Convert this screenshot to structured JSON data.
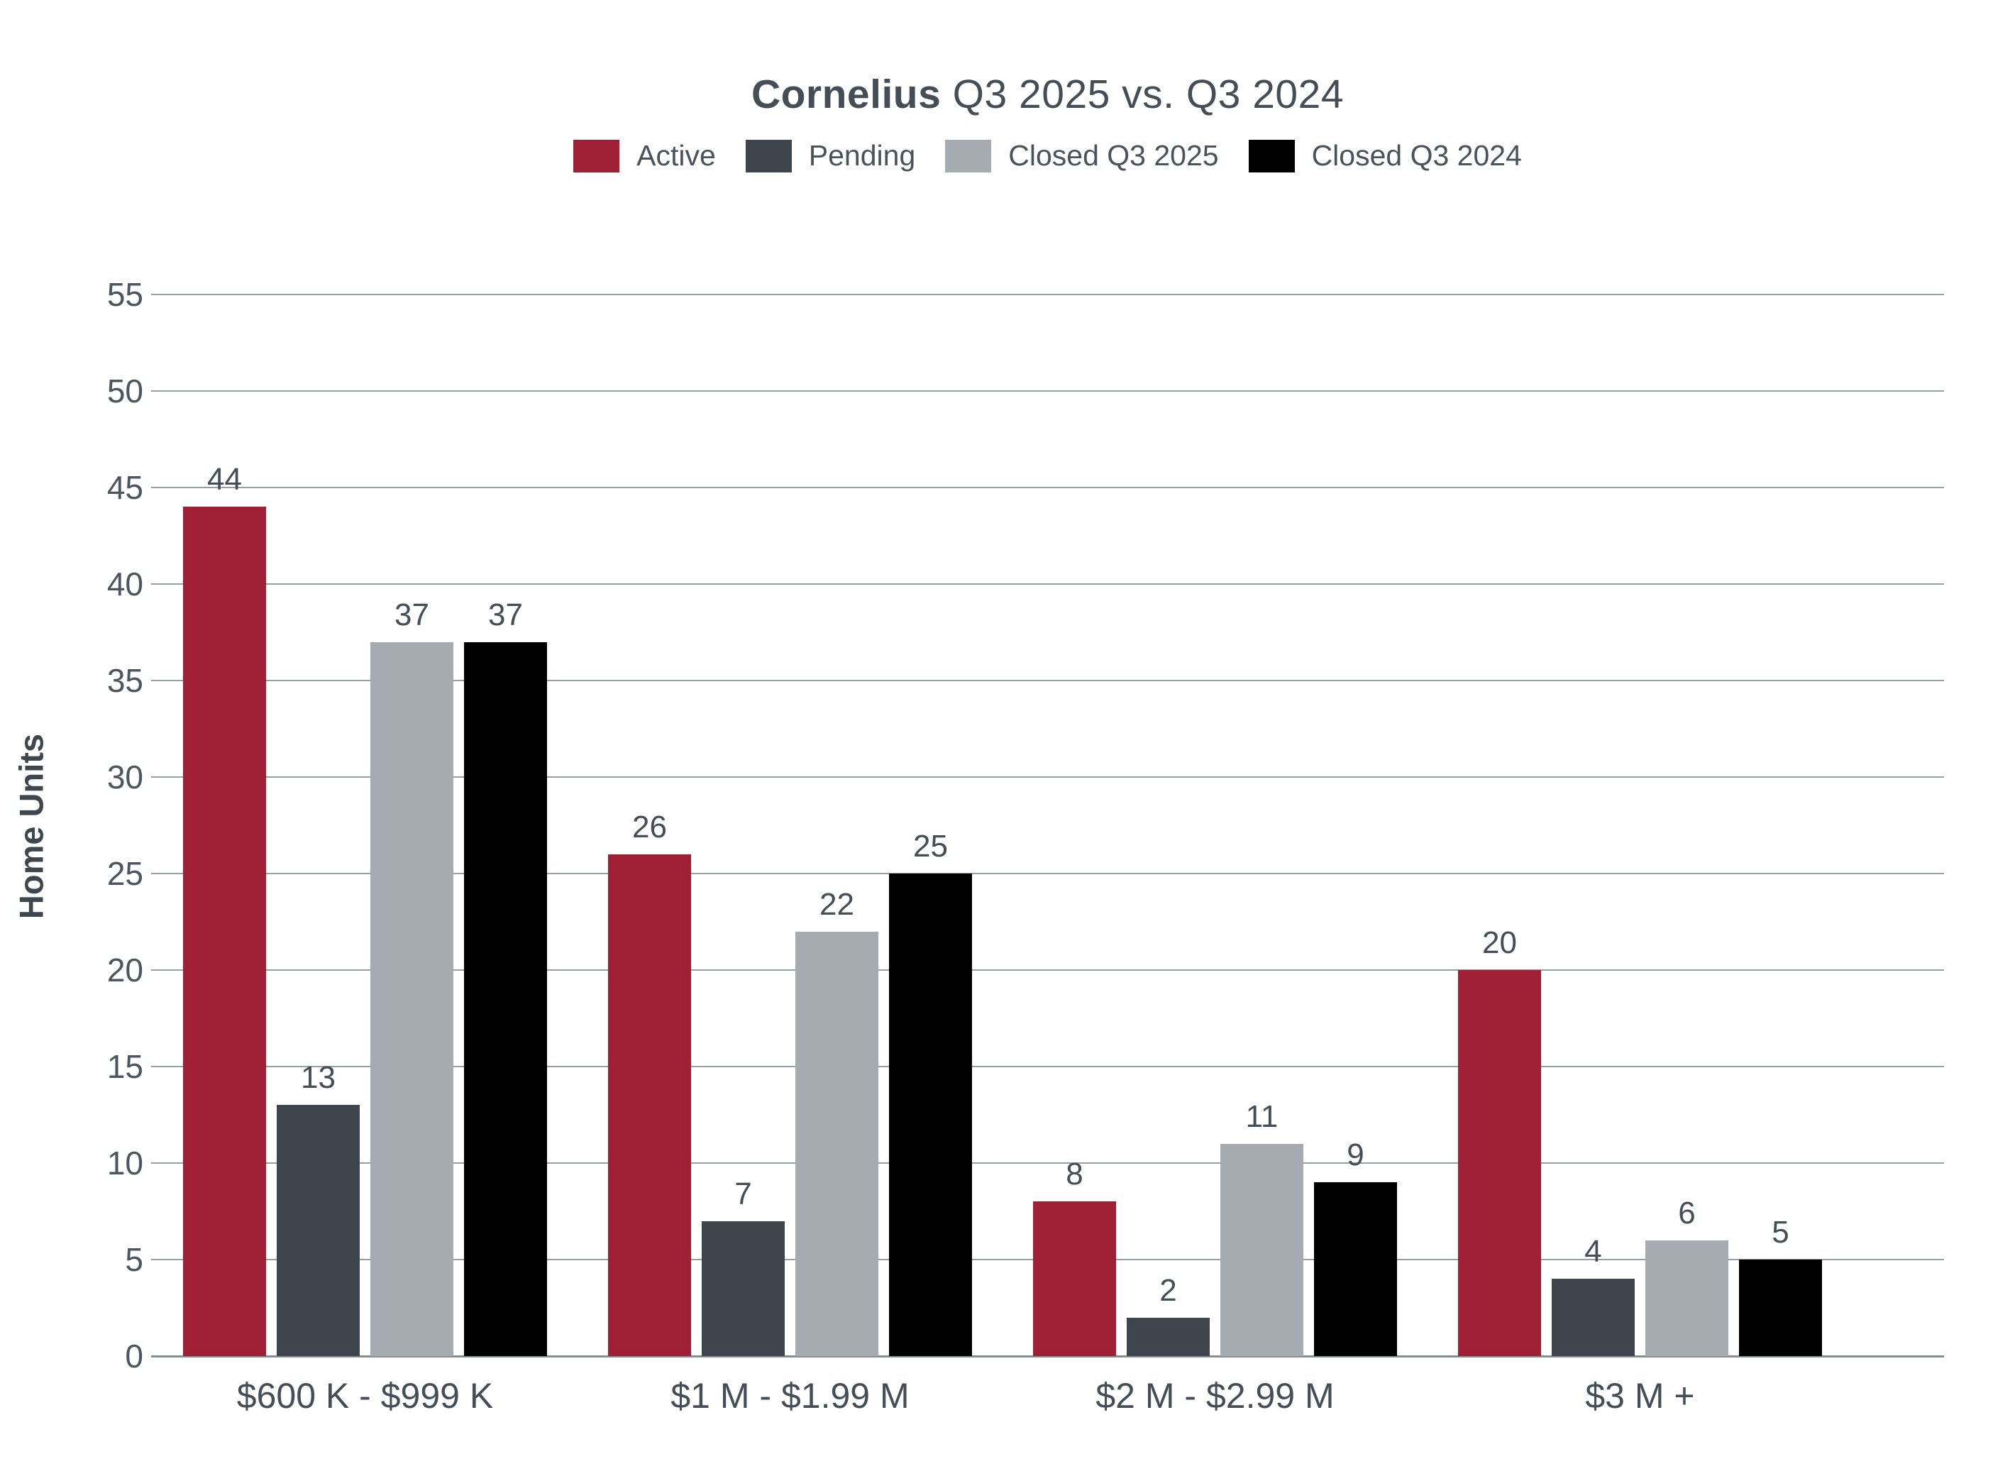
{
  "title": {
    "emphasis": "Cornelius",
    "rest": " Q3 2025 vs. Q3 2024"
  },
  "ylabel": "Home Units",
  "yticks": [
    0,
    5,
    10,
    15,
    20,
    25,
    30,
    35,
    40,
    45,
    50,
    55
  ],
  "chart_data": {
    "type": "bar",
    "title": "Cornelius Q3 2025 vs. Q3 2024",
    "xlabel": "",
    "ylabel": "Home Units",
    "ylim": [
      0,
      55
    ],
    "ytick_step": 5,
    "grid": true,
    "legend_position": "top",
    "categories": [
      "$600 K - $999 K",
      "$1 M - $1.99 M",
      "$2 M - $2.99 M",
      "$3 M +"
    ],
    "series": [
      {
        "name": "Active",
        "color": "#9f2035",
        "values": [
          44,
          26,
          8,
          20
        ]
      },
      {
        "name": "Pending",
        "color": "#3e454d",
        "values": [
          13,
          7,
          2,
          4
        ]
      },
      {
        "name": "Closed Q3 2025",
        "color": "#a5abb1",
        "values": [
          37,
          22,
          11,
          6
        ]
      },
      {
        "name": "Closed Q3 2024",
        "color": "#000000",
        "values": [
          37,
          25,
          9,
          5
        ]
      }
    ]
  },
  "colors": {
    "text": "#454e57",
    "tick_text": "#4d565e",
    "gridline": "#989ea3",
    "baseline": "#878e93",
    "background": "#ffffff"
  }
}
